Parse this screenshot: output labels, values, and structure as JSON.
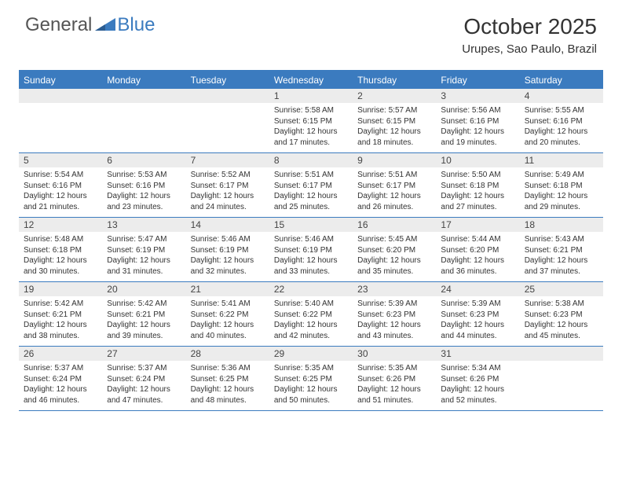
{
  "brand": {
    "part1": "General",
    "part2": "Blue"
  },
  "title": "October 2025",
  "location": "Urupes, Sao Paulo, Brazil",
  "colors": {
    "accent": "#3b7bbf",
    "header_bg": "#3b7bbf",
    "header_text": "#ffffff",
    "daynum_bg": "#ececec",
    "body_text": "#333333",
    "page_bg": "#ffffff"
  },
  "layout": {
    "columns": 7,
    "header_fontsize": 12,
    "daynum_fontsize": 12,
    "body_fontsize": 10,
    "title_fontsize": 28,
    "subtitle_fontsize": 15
  },
  "day_headers": [
    "Sunday",
    "Monday",
    "Tuesday",
    "Wednesday",
    "Thursday",
    "Friday",
    "Saturday"
  ],
  "weeks": [
    [
      {
        "n": "",
        "lines": []
      },
      {
        "n": "",
        "lines": []
      },
      {
        "n": "",
        "lines": []
      },
      {
        "n": "1",
        "lines": [
          "Sunrise: 5:58 AM",
          "Sunset: 6:15 PM",
          "Daylight: 12 hours",
          "and 17 minutes."
        ]
      },
      {
        "n": "2",
        "lines": [
          "Sunrise: 5:57 AM",
          "Sunset: 6:15 PM",
          "Daylight: 12 hours",
          "and 18 minutes."
        ]
      },
      {
        "n": "3",
        "lines": [
          "Sunrise: 5:56 AM",
          "Sunset: 6:16 PM",
          "Daylight: 12 hours",
          "and 19 minutes."
        ]
      },
      {
        "n": "4",
        "lines": [
          "Sunrise: 5:55 AM",
          "Sunset: 6:16 PM",
          "Daylight: 12 hours",
          "and 20 minutes."
        ]
      }
    ],
    [
      {
        "n": "5",
        "lines": [
          "Sunrise: 5:54 AM",
          "Sunset: 6:16 PM",
          "Daylight: 12 hours",
          "and 21 minutes."
        ]
      },
      {
        "n": "6",
        "lines": [
          "Sunrise: 5:53 AM",
          "Sunset: 6:16 PM",
          "Daylight: 12 hours",
          "and 23 minutes."
        ]
      },
      {
        "n": "7",
        "lines": [
          "Sunrise: 5:52 AM",
          "Sunset: 6:17 PM",
          "Daylight: 12 hours",
          "and 24 minutes."
        ]
      },
      {
        "n": "8",
        "lines": [
          "Sunrise: 5:51 AM",
          "Sunset: 6:17 PM",
          "Daylight: 12 hours",
          "and 25 minutes."
        ]
      },
      {
        "n": "9",
        "lines": [
          "Sunrise: 5:51 AM",
          "Sunset: 6:17 PM",
          "Daylight: 12 hours",
          "and 26 minutes."
        ]
      },
      {
        "n": "10",
        "lines": [
          "Sunrise: 5:50 AM",
          "Sunset: 6:18 PM",
          "Daylight: 12 hours",
          "and 27 minutes."
        ]
      },
      {
        "n": "11",
        "lines": [
          "Sunrise: 5:49 AM",
          "Sunset: 6:18 PM",
          "Daylight: 12 hours",
          "and 29 minutes."
        ]
      }
    ],
    [
      {
        "n": "12",
        "lines": [
          "Sunrise: 5:48 AM",
          "Sunset: 6:18 PM",
          "Daylight: 12 hours",
          "and 30 minutes."
        ]
      },
      {
        "n": "13",
        "lines": [
          "Sunrise: 5:47 AM",
          "Sunset: 6:19 PM",
          "Daylight: 12 hours",
          "and 31 minutes."
        ]
      },
      {
        "n": "14",
        "lines": [
          "Sunrise: 5:46 AM",
          "Sunset: 6:19 PM",
          "Daylight: 12 hours",
          "and 32 minutes."
        ]
      },
      {
        "n": "15",
        "lines": [
          "Sunrise: 5:46 AM",
          "Sunset: 6:19 PM",
          "Daylight: 12 hours",
          "and 33 minutes."
        ]
      },
      {
        "n": "16",
        "lines": [
          "Sunrise: 5:45 AM",
          "Sunset: 6:20 PM",
          "Daylight: 12 hours",
          "and 35 minutes."
        ]
      },
      {
        "n": "17",
        "lines": [
          "Sunrise: 5:44 AM",
          "Sunset: 6:20 PM",
          "Daylight: 12 hours",
          "and 36 minutes."
        ]
      },
      {
        "n": "18",
        "lines": [
          "Sunrise: 5:43 AM",
          "Sunset: 6:21 PM",
          "Daylight: 12 hours",
          "and 37 minutes."
        ]
      }
    ],
    [
      {
        "n": "19",
        "lines": [
          "Sunrise: 5:42 AM",
          "Sunset: 6:21 PM",
          "Daylight: 12 hours",
          "and 38 minutes."
        ]
      },
      {
        "n": "20",
        "lines": [
          "Sunrise: 5:42 AM",
          "Sunset: 6:21 PM",
          "Daylight: 12 hours",
          "and 39 minutes."
        ]
      },
      {
        "n": "21",
        "lines": [
          "Sunrise: 5:41 AM",
          "Sunset: 6:22 PM",
          "Daylight: 12 hours",
          "and 40 minutes."
        ]
      },
      {
        "n": "22",
        "lines": [
          "Sunrise: 5:40 AM",
          "Sunset: 6:22 PM",
          "Daylight: 12 hours",
          "and 42 minutes."
        ]
      },
      {
        "n": "23",
        "lines": [
          "Sunrise: 5:39 AM",
          "Sunset: 6:23 PM",
          "Daylight: 12 hours",
          "and 43 minutes."
        ]
      },
      {
        "n": "24",
        "lines": [
          "Sunrise: 5:39 AM",
          "Sunset: 6:23 PM",
          "Daylight: 12 hours",
          "and 44 minutes."
        ]
      },
      {
        "n": "25",
        "lines": [
          "Sunrise: 5:38 AM",
          "Sunset: 6:23 PM",
          "Daylight: 12 hours",
          "and 45 minutes."
        ]
      }
    ],
    [
      {
        "n": "26",
        "lines": [
          "Sunrise: 5:37 AM",
          "Sunset: 6:24 PM",
          "Daylight: 12 hours",
          "and 46 minutes."
        ]
      },
      {
        "n": "27",
        "lines": [
          "Sunrise: 5:37 AM",
          "Sunset: 6:24 PM",
          "Daylight: 12 hours",
          "and 47 minutes."
        ]
      },
      {
        "n": "28",
        "lines": [
          "Sunrise: 5:36 AM",
          "Sunset: 6:25 PM",
          "Daylight: 12 hours",
          "and 48 minutes."
        ]
      },
      {
        "n": "29",
        "lines": [
          "Sunrise: 5:35 AM",
          "Sunset: 6:25 PM",
          "Daylight: 12 hours",
          "and 50 minutes."
        ]
      },
      {
        "n": "30",
        "lines": [
          "Sunrise: 5:35 AM",
          "Sunset: 6:26 PM",
          "Daylight: 12 hours",
          "and 51 minutes."
        ]
      },
      {
        "n": "31",
        "lines": [
          "Sunrise: 5:34 AM",
          "Sunset: 6:26 PM",
          "Daylight: 12 hours",
          "and 52 minutes."
        ]
      },
      {
        "n": "",
        "lines": []
      }
    ]
  ]
}
